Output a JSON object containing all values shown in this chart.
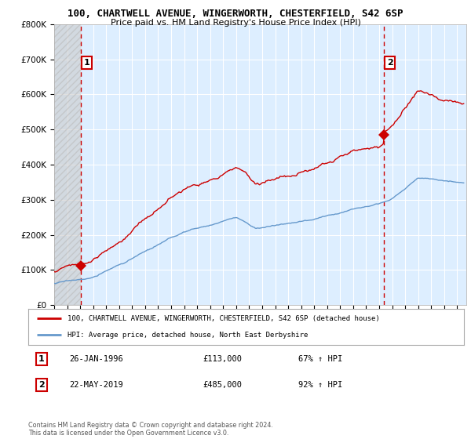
{
  "title_line1": "100, CHARTWELL AVENUE, WINGERWORTH, CHESTERFIELD, S42 6SP",
  "title_line2": "Price paid vs. HM Land Registry's House Price Index (HPI)",
  "ylim": [
    0,
    800000
  ],
  "yticks": [
    0,
    100000,
    200000,
    300000,
    400000,
    500000,
    600000,
    700000,
    800000
  ],
  "ytick_labels": [
    "£0",
    "£100K",
    "£200K",
    "£300K",
    "£400K",
    "£500K",
    "£600K",
    "£700K",
    "£800K"
  ],
  "sale1_date": 1996.07,
  "sale1_price": 113000,
  "sale2_date": 2019.39,
  "sale2_price": 485000,
  "red_line_color": "#cc0000",
  "blue_line_color": "#6699cc",
  "marker_color": "#cc0000",
  "dashed_line_color": "#cc0000",
  "legend_label1": "100, CHARTWELL AVENUE, WINGERWORTH, CHESTERFIELD, S42 6SP (detached house)",
  "legend_label2": "HPI: Average price, detached house, North East Derbyshire",
  "table_row1": [
    "1",
    "26-JAN-1996",
    "£113,000",
    "67% ↑ HPI"
  ],
  "table_row2": [
    "2",
    "22-MAY-2019",
    "£485,000",
    "92% ↑ HPI"
  ],
  "footnote": "Contains HM Land Registry data © Crown copyright and database right 2024.\nThis data is licensed under the Open Government Licence v3.0.",
  "background_color": "#ffffff",
  "plot_bg_color": "#ddeeff"
}
